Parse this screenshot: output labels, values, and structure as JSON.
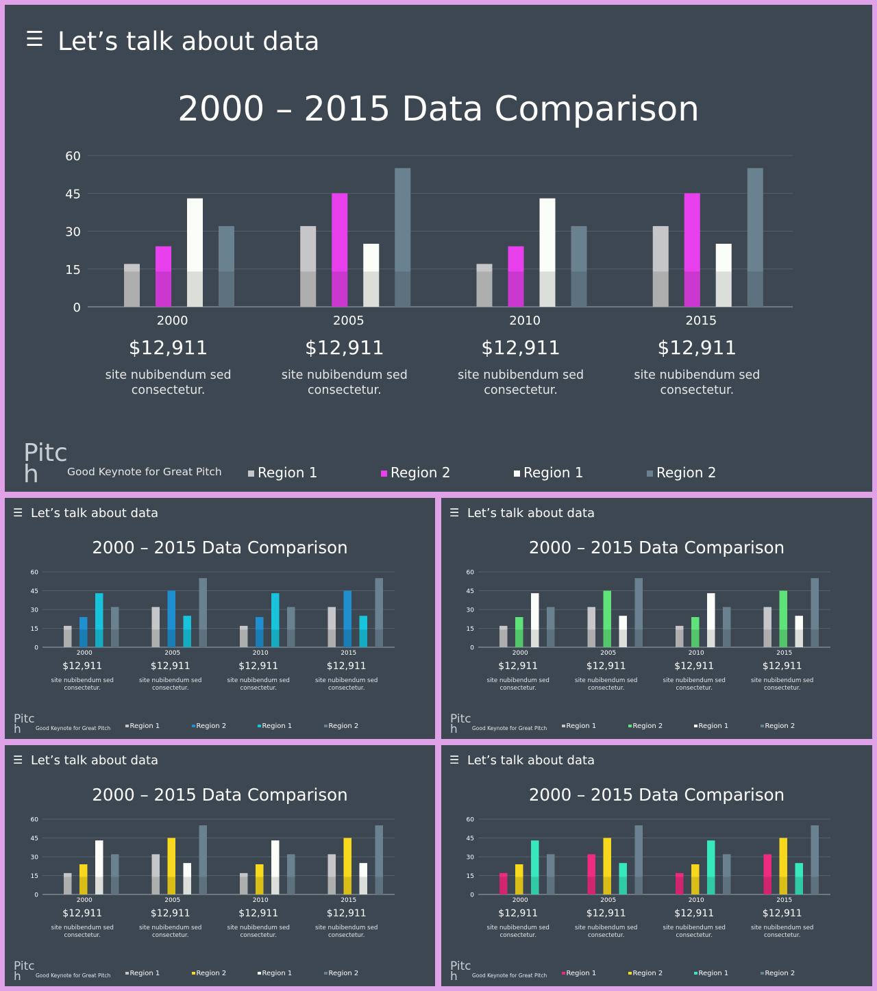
{
  "header": {
    "menu_icon": "hamburger-menu-icon",
    "menu_glyph": "☰",
    "title": "Let’s talk about data"
  },
  "chart_title": "2000 – 2015 Data Comparison",
  "footer": {
    "logo": "Pitc\nh",
    "tagline": "Good Keynote for Great Pitch"
  },
  "chart_data": {
    "type": "bar",
    "categories": [
      "2000",
      "2005",
      "2010",
      "2015"
    ],
    "ylim": [
      0,
      60
    ],
    "yticks": [
      0,
      15,
      30,
      45,
      60
    ],
    "grid": true,
    "series": [
      {
        "name": "Region 1",
        "values": [
          17,
          32,
          17,
          32
        ]
      },
      {
        "name": "Region 2",
        "values": [
          24,
          45,
          24,
          45
        ]
      },
      {
        "name": "Region 1",
        "values": [
          43,
          25,
          43,
          25
        ]
      },
      {
        "name": "Region 2",
        "values": [
          32,
          55,
          32,
          55
        ]
      }
    ]
  },
  "stats": [
    {
      "year": "2000",
      "price": "$12,911",
      "desc": "site nubibendum sed consectetur."
    },
    {
      "year": "2005",
      "price": "$12,911",
      "desc": "site nubibendum sed consectetur."
    },
    {
      "year": "2010",
      "price": "$12,911",
      "desc": "site nubibendum sed consectetur."
    },
    {
      "year": "2015",
      "price": "$12,911",
      "desc": "site nubibendum sed consectetur."
    }
  ],
  "legend": [
    "Region 1",
    "Region 2",
    "Region 1",
    "Region 2"
  ],
  "themes": [
    {
      "id": "magenta",
      "colors": [
        "#c6c6c8",
        "#e840ec",
        "#fbfdf9",
        "#6a8290"
      ]
    },
    {
      "id": "blue",
      "colors": [
        "#c6c6c8",
        "#1f8fd0",
        "#18c3dc",
        "#6a8290"
      ]
    },
    {
      "id": "green",
      "colors": [
        "#c6c6c8",
        "#5fe27a",
        "#fbfdf9",
        "#6a8290"
      ]
    },
    {
      "id": "yellow",
      "colors": [
        "#c6c6c8",
        "#f8d81c",
        "#fbfdf9",
        "#6a8290"
      ]
    },
    {
      "id": "rainbow",
      "colors": [
        "#ee2b7e",
        "#f8d81c",
        "#37e8bd",
        "#6a8290"
      ]
    }
  ],
  "colors": {
    "background": "#3c4752",
    "frame": "#e0a2e6",
    "grid": "#55606b",
    "axis_text": "#ffffff"
  }
}
